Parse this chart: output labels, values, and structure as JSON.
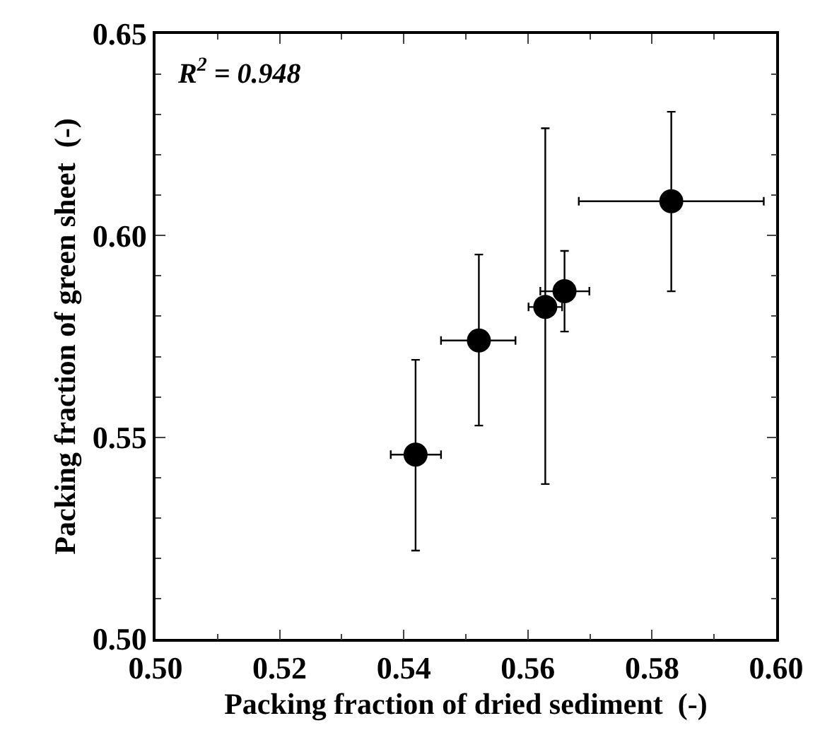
{
  "chart_data": {
    "type": "scatter",
    "xlabel": "Packing fraction of dried sediment  (-)",
    "ylabel": "Packing fraction of green sheet  (-)",
    "x": [
      0.5419,
      0.5521,
      0.5628,
      0.5659,
      0.5831
    ],
    "series": [
      {
        "color": "#000000",
        "values": [
          0.5457,
          0.574,
          0.5823,
          0.5862,
          0.6085
        ],
        "errors": [
          [
            0.5219,
            0.5692
          ],
          [
            0.5529,
            0.5953
          ],
          [
            0.5384,
            0.6266
          ],
          [
            0.5762,
            0.5962
          ],
          [
            0.5862,
            0.6307
          ]
        ],
        "xerrors": [
          [
            0.5379,
            0.546
          ],
          [
            0.546,
            0.558
          ],
          [
            0.5601,
            0.5655
          ],
          [
            0.562,
            0.5699
          ],
          [
            0.5682,
            0.598
          ]
        ]
      }
    ],
    "xlim": [
      0.5,
      0.6
    ],
    "xticks": [
      {
        "value": 0.5,
        "label": "0.50"
      },
      {
        "value": 0.52,
        "label": "0.52"
      },
      {
        "value": 0.54,
        "label": "0.54"
      },
      {
        "value": 0.56,
        "label": "0.56"
      },
      {
        "value": 0.58,
        "label": "0.58"
      },
      {
        "value": 0.6,
        "label": "0.60"
      }
    ],
    "ylim": [
      0.5,
      0.65
    ],
    "yticks": [
      {
        "value": 0.5,
        "label": "0.50"
      },
      {
        "value": 0.55,
        "label": "0.55"
      },
      {
        "value": 0.6,
        "label": "0.60"
      },
      {
        "value": 0.65,
        "label": "0.65"
      }
    ],
    "marker": "circle",
    "annotations": [
      "R$^{2}$ = 0.948"
    ]
  }
}
